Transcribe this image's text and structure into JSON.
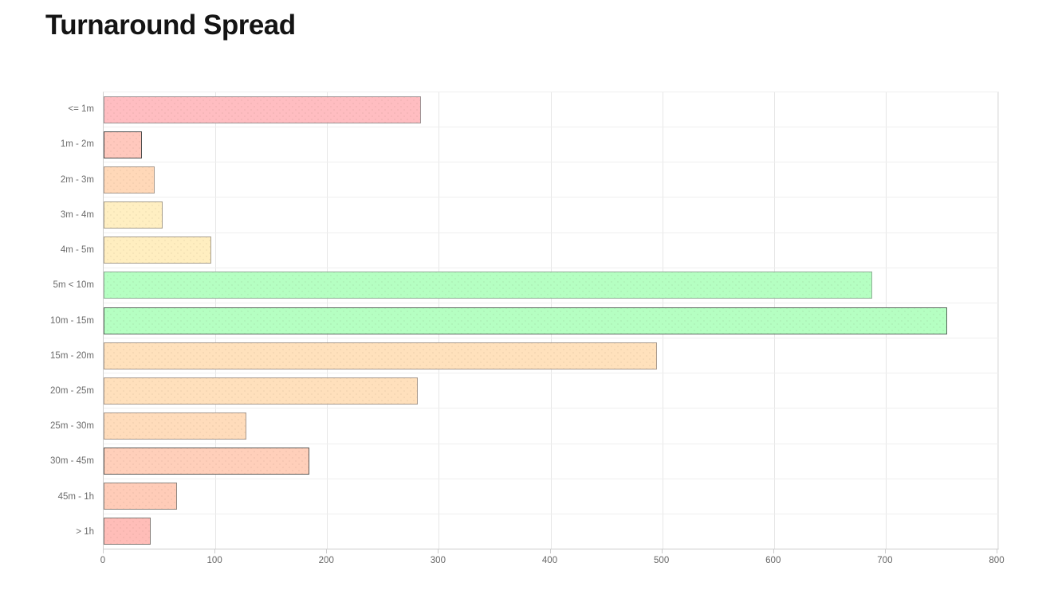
{
  "page": {
    "title": "Turnaround Spread",
    "background_color": "#ffffff",
    "title_color": "#141414"
  },
  "chart_data": {
    "type": "bar",
    "orientation": "horizontal",
    "title": "Turnaround Spread",
    "xlabel": "",
    "ylabel": "",
    "grid": true,
    "legend": "none",
    "xlim": [
      0,
      800
    ],
    "x_ticks": [
      0,
      100,
      200,
      300,
      400,
      500,
      600,
      700,
      800
    ],
    "x_tick_labels": [
      "0",
      "100",
      "200",
      "300",
      "400",
      "500",
      "600",
      "700",
      "800"
    ],
    "categories": [
      "<= 1m",
      "1m - 2m",
      "2m - 3m",
      "3m - 4m",
      "4m - 5m",
      "5m < 10m",
      "10m - 15m",
      "15m - 20m",
      "20m - 25m",
      "25m - 30m",
      "30m - 45m",
      "45m - 1h",
      "> 1h"
    ],
    "values": [
      284,
      34,
      46,
      53,
      96,
      688,
      755,
      495,
      281,
      128,
      184,
      66,
      42
    ],
    "bar_colors": [
      "#ffbdc1",
      "#ffc8bd",
      "#ffd8b8",
      "#ffefc2",
      "#ffeec0",
      "#b5ffc2",
      "#b5ffc2",
      "#ffe1bc",
      "#ffe0bc",
      "#ffdcbb",
      "#ffcfba",
      "#ffccb8",
      "#ffbdb8"
    ],
    "bar_border_colors": [
      "#9e9394",
      "#4d4d4d",
      "#a89a8e",
      "#a89f8e",
      "#a89f8e",
      "#8fae96",
      "#5a6a5e",
      "#a89a8e",
      "#a89a8e",
      "#a89a8e",
      "#5f5b58",
      "#8f8680",
      "#837a76"
    ],
    "gridline_color": "#e6e6e6",
    "axis_line_color": "#cccccc",
    "tick_label_color": "#666666",
    "category_label_color": "#6b6b6b"
  }
}
